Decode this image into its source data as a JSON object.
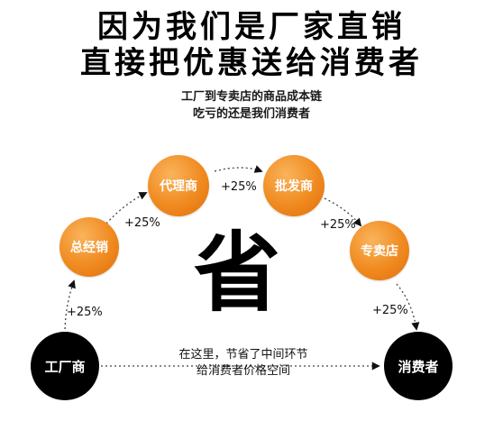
{
  "headline": {
    "line1": "因为我们是厂家直销",
    "line2": "直接把优惠送给消费者"
  },
  "subtitle": {
    "line1": "工厂到专卖店的商品成本链",
    "line2": "吃亏的还是我们消费者"
  },
  "nodes": {
    "factory": "工厂商",
    "distributor": "总经销",
    "agent": "代理商",
    "wholesaler": "批发商",
    "store": "专卖店",
    "consumer": "消费者"
  },
  "markups": {
    "factory_to_distributor": "+25%",
    "distributor_to_agent": "+25%",
    "agent_to_wholesaler": "+25%",
    "wholesaler_to_store": "+25%",
    "store_to_consumer": "+25%"
  },
  "center_char": "省",
  "note": {
    "line1": "在这里，节省了中间环节",
    "line2": "给消费者价格空间"
  },
  "colors": {
    "orange": "#f08a1f",
    "black": "#000000"
  }
}
